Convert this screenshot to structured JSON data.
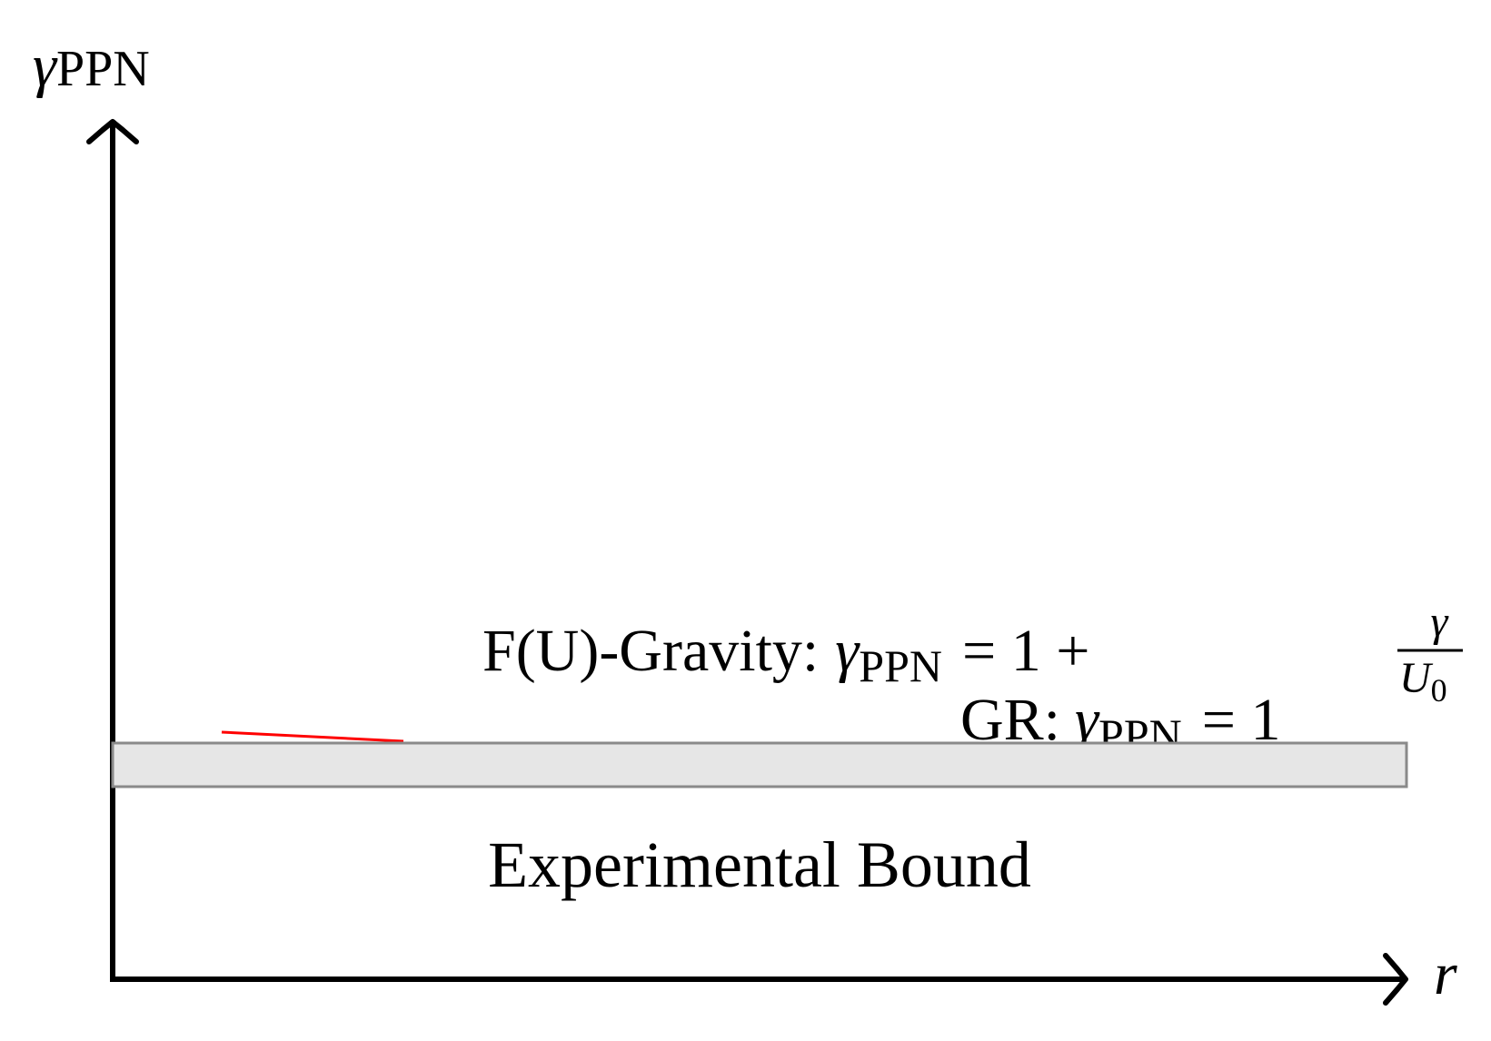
{
  "axes": {
    "y_label": {
      "symbol": "γ",
      "sub": "PPN"
    },
    "x_label": "r"
  },
  "fu_gravity": {
    "name": "F(U)-Gravity:",
    "symbol": "γ",
    "sub": "PPN",
    "rhs": "= 1 +",
    "frac_num": "γ",
    "frac_den": "U",
    "frac_den_sub": "0"
  },
  "gr": {
    "name": "GR:",
    "symbol": "γ",
    "sub": "PPN",
    "rhs": "= 1"
  },
  "band_label": "Experimental Bound"
}
